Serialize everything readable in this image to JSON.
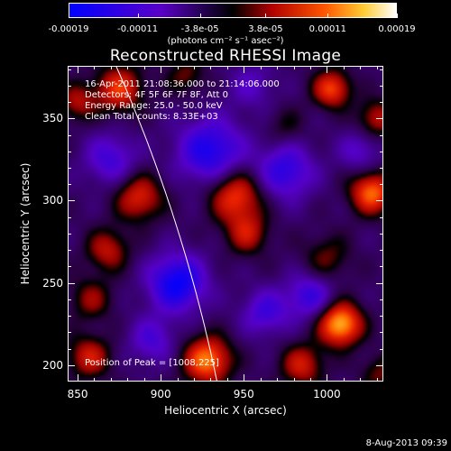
{
  "chart_data": {
    "type": "heatmap",
    "title": "Reconstructed RHESSI Image",
    "xlabel": "Heliocentric X (arcsec)",
    "ylabel": "Heliocentric Y (arcsec)",
    "xlim": [
      844,
      1034
    ],
    "ylim": [
      190,
      382
    ],
    "x_ticks": [
      850,
      900,
      950,
      1000
    ],
    "y_ticks": [
      200,
      250,
      300,
      350
    ],
    "colorbar": {
      "tick_labels": [
        "-0.00019",
        "-0.00011",
        "-3.8e-05",
        "3.8e-05",
        "0.00011",
        "0.00019"
      ],
      "tick_values": [
        -0.00019,
        -0.00011,
        -3.8e-05,
        3.8e-05,
        0.00011,
        0.00019
      ],
      "units": "(photons cm⁻² s⁻¹ asec⁻²)",
      "range": [
        -0.00019,
        0.00019
      ],
      "colormap": [
        "#0000ff",
        "#5500bb",
        "#000000",
        "#bb0000",
        "#ff5500",
        "#ffcc33",
        "#ffffff"
      ]
    },
    "annotations": [
      "16-Apr-2011 21:08:36.000 to 21:14:06.000",
      "Detectors: 4F 5F 6F 7F 8F, Att 0",
      "Energy Range: 25.0 - 50.0 keV",
      "Clean    Total counts: 8.33E+03"
    ],
    "peak_label": "Position of Peak = [1008,225]",
    "peak": {
      "x": 1008,
      "y": 225
    },
    "limb_curve_color": "#ffffff",
    "sources": [
      {
        "x": 1008,
        "y": 225,
        "amp": 0.00019,
        "sigma": 9
      },
      {
        "x": 928,
        "y": 203,
        "amp": 0.00016,
        "sigma": 10
      },
      {
        "x": 945,
        "y": 303,
        "amp": 0.00013,
        "sigma": 11
      },
      {
        "x": 952,
        "y": 280,
        "amp": 9e-05,
        "sigma": 9
      },
      {
        "x": 1027,
        "y": 305,
        "amp": 0.00015,
        "sigma": 9
      },
      {
        "x": 1000,
        "y": 265,
        "amp": 6e-05,
        "sigma": 10
      },
      {
        "x": 887,
        "y": 302,
        "amp": 0.00011,
        "sigma": 10
      },
      {
        "x": 868,
        "y": 270,
        "amp": 9e-05,
        "sigma": 9
      },
      {
        "x": 858,
        "y": 240,
        "amp": 7e-05,
        "sigma": 9
      },
      {
        "x": 857,
        "y": 205,
        "amp": 0.0001,
        "sigma": 9
      },
      {
        "x": 875,
        "y": 368,
        "amp": 0.00012,
        "sigma": 10
      },
      {
        "x": 850,
        "y": 360,
        "amp": 8e-05,
        "sigma": 8
      },
      {
        "x": 915,
        "y": 376,
        "amp": 6e-05,
        "sigma": 8
      },
      {
        "x": 1003,
        "y": 368,
        "amp": 0.00013,
        "sigma": 8
      },
      {
        "x": 1030,
        "y": 350,
        "amp": 9e-05,
        "sigma": 8
      },
      {
        "x": 975,
        "y": 345,
        "amp": 4e-05,
        "sigma": 8
      },
      {
        "x": 985,
        "y": 200,
        "amp": 0.0001,
        "sigma": 9
      },
      {
        "x": 1032,
        "y": 195,
        "amp": 6e-05,
        "sigma": 8
      },
      {
        "x": 910,
        "y": 250,
        "amp": -0.00014,
        "sigma": 12
      },
      {
        "x": 930,
        "y": 330,
        "amp": -0.00012,
        "sigma": 14
      },
      {
        "x": 975,
        "y": 318,
        "amp": -0.0001,
        "sigma": 12
      },
      {
        "x": 870,
        "y": 325,
        "amp": -8e-05,
        "sigma": 11
      },
      {
        "x": 990,
        "y": 242,
        "amp": -9e-05,
        "sigma": 10
      },
      {
        "x": 963,
        "y": 232,
        "amp": -8e-05,
        "sigma": 10
      },
      {
        "x": 895,
        "y": 215,
        "amp": -7e-05,
        "sigma": 10
      },
      {
        "x": 1020,
        "y": 330,
        "amp": -6e-05,
        "sigma": 9
      },
      {
        "x": 955,
        "y": 370,
        "amp": -5e-05,
        "sigma": 10
      }
    ]
  },
  "footer": {
    "date": "8-Aug-2013 09:39"
  }
}
